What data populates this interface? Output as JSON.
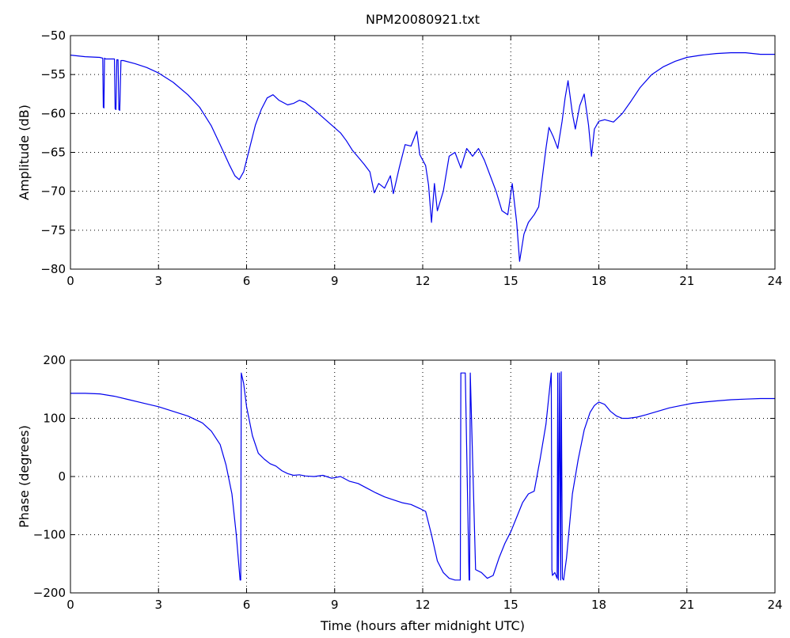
{
  "title": "NPM20080921.txt",
  "chart_data": [
    {
      "type": "line",
      "title": "NPM20080921.txt",
      "xlabel": "",
      "ylabel": "Amplitude (dB)",
      "xlim": [
        0,
        24
      ],
      "ylim": [
        -80,
        -50
      ],
      "xticks": [
        "0",
        "3",
        "6",
        "9",
        "12",
        "15",
        "18",
        "21",
        "24"
      ],
      "yticks": [
        "-50",
        "-55",
        "-60",
        "-65",
        "-70",
        "-75",
        "-80"
      ],
      "grid": true,
      "line_color": "#0000ee",
      "series": [
        {
          "x": [
            0,
            0.5,
            1.0,
            1.1,
            1.12,
            1.14,
            1.16,
            1.2,
            1.5,
            1.52,
            1.55,
            1.58,
            1.62,
            1.65,
            1.68,
            1.72,
            1.8,
            2.2,
            2.6,
            3.0,
            3.5,
            4.0,
            4.4,
            4.8,
            5.1,
            5.4,
            5.6,
            5.75,
            5.9,
            6.1,
            6.3,
            6.5,
            6.7,
            6.9,
            7.1,
            7.4,
            7.6,
            7.8,
            8.0,
            8.3,
            8.6,
            8.9,
            9.2,
            9.4,
            9.6,
            9.8,
            10.0,
            10.2,
            10.35,
            10.5,
            10.7,
            10.9,
            11.0,
            11.2,
            11.4,
            11.6,
            11.8,
            11.9,
            12.1,
            12.2,
            12.3,
            12.4,
            12.5,
            12.7,
            12.9,
            13.1,
            13.3,
            13.5,
            13.7,
            13.9,
            14.1,
            14.3,
            14.5,
            14.7,
            14.9,
            15.05,
            15.2,
            15.3,
            15.45,
            15.6,
            15.8,
            15.95,
            16.1,
            16.2,
            16.3,
            16.45,
            16.6,
            16.75,
            16.85,
            16.95,
            17.1,
            17.2,
            17.35,
            17.5,
            17.65,
            17.75,
            17.85,
            18.0,
            18.2,
            18.5,
            18.8,
            19.1,
            19.4,
            19.8,
            20.2,
            20.6,
            21.0,
            21.5,
            22.0,
            22.5,
            23.0,
            23.5,
            24.0
          ],
          "y": [
            -52.5,
            -52.7,
            -52.8,
            -52.9,
            -59.2,
            -59.3,
            -52.9,
            -53.0,
            -53.0,
            -59.4,
            -59.5,
            -53.1,
            -53.1,
            -59.5,
            -59.6,
            -53.2,
            -53.2,
            -53.6,
            -54.1,
            -54.8,
            -56.0,
            -57.6,
            -59.2,
            -61.6,
            -64.0,
            -66.5,
            -68.0,
            -68.5,
            -67.5,
            -64.5,
            -61.5,
            -59.5,
            -58.0,
            -57.6,
            -58.3,
            -58.9,
            -58.7,
            -58.3,
            -58.6,
            -59.5,
            -60.5,
            -61.5,
            -62.5,
            -63.5,
            -64.7,
            -65.6,
            -66.5,
            -67.5,
            -70.2,
            -69.0,
            -69.6,
            -68.0,
            -70.3,
            -67.0,
            -64.0,
            -64.2,
            -62.3,
            -65.3,
            -66.7,
            -69.2,
            -74.0,
            -69.0,
            -72.5,
            -70.0,
            -65.5,
            -65.0,
            -67.0,
            -64.5,
            -65.5,
            -64.5,
            -66.0,
            -68.0,
            -70.0,
            -72.5,
            -73.0,
            -69.0,
            -74.0,
            -79.0,
            -75.5,
            -74.0,
            -73.0,
            -72.0,
            -67.5,
            -64.5,
            -61.8,
            -63.0,
            -64.5,
            -61.0,
            -58.0,
            -55.8,
            -60.0,
            -62.0,
            -59.0,
            -57.5,
            -61.5,
            -65.5,
            -62.0,
            -61.0,
            -60.8,
            -61.1,
            -60.0,
            -58.4,
            -56.7,
            -55.0,
            -54.0,
            -53.3,
            -52.8,
            -52.5,
            -52.3,
            -52.2,
            -52.2,
            -52.4,
            -52.4
          ]
        }
      ]
    },
    {
      "type": "line",
      "title": "",
      "xlabel": "Time (hours after midnight UTC)",
      "ylabel": "Phase (degrees)",
      "xlim": [
        0,
        24
      ],
      "ylim": [
        -200,
        200
      ],
      "xticks": [
        "0",
        "3",
        "6",
        "9",
        "12",
        "15",
        "18",
        "21",
        "24"
      ],
      "yticks": [
        "200",
        "100",
        "0",
        "-100",
        "-200"
      ],
      "grid": true,
      "line_color": "#0000ee",
      "series": [
        {
          "x": [
            0,
            0.5,
            1.0,
            1.5,
            2.0,
            2.5,
            3.0,
            3.5,
            4.0,
            4.5,
            4.8,
            5.1,
            5.3,
            5.5,
            5.65,
            5.78,
            5.8,
            5.82,
            5.9,
            6.0,
            6.2,
            6.4,
            6.6,
            6.8,
            7.0,
            7.2,
            7.4,
            7.6,
            7.8,
            8.0,
            8.3,
            8.6,
            8.9,
            9.2,
            9.5,
            9.8,
            10.1,
            10.4,
            10.7,
            11.0,
            11.3,
            11.6,
            11.9,
            12.1,
            12.3,
            12.5,
            12.7,
            12.9,
            13.1,
            13.28,
            13.3,
            13.32,
            13.45,
            13.58,
            13.6,
            13.62,
            13.8,
            14.0,
            14.2,
            14.4,
            14.6,
            14.8,
            15.0,
            15.2,
            15.4,
            15.6,
            15.8,
            16.0,
            16.2,
            16.38,
            16.4,
            16.42,
            16.5,
            16.58,
            16.6,
            16.62,
            16.66,
            16.7,
            16.72,
            16.76,
            16.8,
            16.9,
            17.0,
            17.1,
            17.3,
            17.5,
            17.7,
            17.85,
            18.0,
            18.2,
            18.4,
            18.6,
            18.8,
            19.0,
            19.3,
            19.6,
            20.0,
            20.4,
            20.8,
            21.2,
            21.6,
            22.0,
            22.5,
            23.0,
            23.5,
            24.0
          ],
          "y": [
            143,
            143,
            142,
            138,
            132,
            126,
            120,
            112,
            104,
            92,
            78,
            55,
            20,
            -30,
            -100,
            -178,
            -178,
            178,
            160,
            120,
            70,
            40,
            30,
            22,
            18,
            10,
            5,
            2,
            3,
            1,
            0,
            2,
            -3,
            0,
            -8,
            -12,
            -20,
            -28,
            -35,
            -40,
            -45,
            -48,
            -55,
            -60,
            -100,
            -145,
            -165,
            -175,
            -178,
            -178,
            178,
            178,
            178,
            -178,
            -178,
            178,
            -160,
            -165,
            -175,
            -170,
            -140,
            -115,
            -95,
            -70,
            -45,
            -30,
            -25,
            30,
            90,
            178,
            -160,
            -170,
            -165,
            -175,
            178,
            -178,
            178,
            -178,
            180,
            -175,
            -178,
            -140,
            -85,
            -30,
            30,
            80,
            110,
            122,
            128,
            124,
            112,
            104,
            100,
            100,
            102,
            106,
            112,
            118,
            122,
            126,
            128,
            130,
            132,
            133,
            134,
            134
          ]
        }
      ]
    }
  ]
}
